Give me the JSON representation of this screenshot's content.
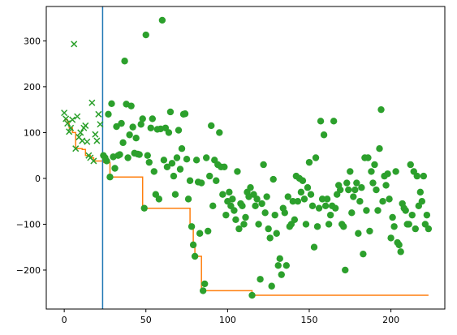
{
  "chart_data": {
    "type": "scatter",
    "title": "",
    "xlabel": "",
    "ylabel": "",
    "xlim": [
      -11,
      233
    ],
    "ylim": [
      -285,
      375
    ],
    "xticks": [
      0,
      50,
      100,
      150,
      200
    ],
    "yticks": [
      -200,
      -100,
      0,
      100,
      200,
      300
    ],
    "grid": false,
    "colors": {
      "points": "#2ca02c",
      "step": "#ff7f0e",
      "vline": "#1f77b4",
      "axes": "#000000"
    },
    "vline": {
      "x": 23.5
    },
    "series": [
      {
        "marker": "x",
        "points": [
          [
            0,
            143
          ],
          [
            1,
            130
          ],
          [
            2,
            120
          ],
          [
            3,
            102
          ],
          [
            4,
            110
          ],
          [
            5,
            128
          ],
          [
            6,
            293
          ],
          [
            7,
            65
          ],
          [
            8,
            135
          ],
          [
            9,
            90
          ],
          [
            10,
            100
          ],
          [
            11,
            82
          ],
          [
            12,
            110
          ],
          [
            13,
            115
          ],
          [
            14,
            80
          ],
          [
            15,
            50
          ],
          [
            16,
            45
          ],
          [
            17,
            165
          ],
          [
            18,
            38
          ],
          [
            19,
            96
          ],
          [
            20,
            82
          ],
          [
            21,
            140
          ],
          [
            22,
            118
          ]
        ]
      },
      {
        "marker": "o",
        "points": [
          [
            24,
            50
          ],
          [
            25,
            45
          ],
          [
            26,
            38
          ],
          [
            27,
            140
          ],
          [
            28,
            3
          ],
          [
            29,
            163
          ],
          [
            30,
            47
          ],
          [
            31,
            22
          ],
          [
            32,
            113
          ],
          [
            33,
            50
          ],
          [
            34,
            52
          ],
          [
            35,
            120
          ],
          [
            36,
            78
          ],
          [
            37,
            256
          ],
          [
            38,
            162
          ],
          [
            39,
            45
          ],
          [
            40,
            95
          ],
          [
            41,
            158
          ],
          [
            42,
            112
          ],
          [
            43,
            55
          ],
          [
            44,
            88
          ],
          [
            45,
            53
          ],
          [
            46,
            52
          ],
          [
            47,
            118
          ],
          [
            48,
            130
          ],
          [
            49,
            -65
          ],
          [
            50,
            313
          ],
          [
            51,
            50
          ],
          [
            52,
            35
          ],
          [
            53,
            110
          ],
          [
            54,
            130
          ],
          [
            55,
            15
          ],
          [
            56,
            -35
          ],
          [
            57,
            107
          ],
          [
            58,
            -45
          ],
          [
            59,
            108
          ],
          [
            60,
            345
          ],
          [
            61,
            40
          ],
          [
            62,
            110
          ],
          [
            63,
            25
          ],
          [
            64,
            100
          ],
          [
            65,
            145
          ],
          [
            66,
            33
          ],
          [
            67,
            5
          ],
          [
            68,
            -35
          ],
          [
            69,
            45
          ],
          [
            70,
            105
          ],
          [
            71,
            20
          ],
          [
            72,
            65
          ],
          [
            73,
            140
          ],
          [
            74,
            141
          ],
          [
            75,
            42
          ],
          [
            76,
            -45
          ],
          [
            77,
            -5
          ],
          [
            78,
            -105
          ],
          [
            79,
            -145
          ],
          [
            80,
            -170
          ],
          [
            81,
            40
          ],
          [
            82,
            -8
          ],
          [
            83,
            -120
          ],
          [
            84,
            -10
          ],
          [
            85,
            -245
          ],
          [
            86,
            -230
          ],
          [
            87,
            45
          ],
          [
            88,
            -115
          ],
          [
            89,
            5
          ],
          [
            90,
            115
          ],
          [
            91,
            -60
          ],
          [
            92,
            40
          ],
          [
            93,
            -5
          ],
          [
            94,
            30
          ],
          [
            95,
            100
          ],
          [
            96,
            25
          ],
          [
            97,
            -35
          ],
          [
            98,
            25
          ],
          [
            99,
            -80
          ],
          [
            100,
            -50
          ],
          [
            101,
            -30
          ],
          [
            102,
            -60
          ],
          [
            103,
            -45
          ],
          [
            104,
            -70
          ],
          [
            105,
            -90
          ],
          [
            106,
            15
          ],
          [
            107,
            -110
          ],
          [
            108,
            -55
          ],
          [
            109,
            -60
          ],
          [
            110,
            -100
          ],
          [
            111,
            -85
          ],
          [
            112,
            -30
          ],
          [
            113,
            -40
          ],
          [
            114,
            -20
          ],
          [
            115,
            -255
          ],
          [
            116,
            -35
          ],
          [
            117,
            -60
          ],
          [
            118,
            -45
          ],
          [
            119,
            -100
          ],
          [
            120,
            -220
          ],
          [
            121,
            -55
          ],
          [
            122,
            30
          ],
          [
            123,
            -75
          ],
          [
            124,
            -40
          ],
          [
            125,
            -110
          ],
          [
            126,
            -130
          ],
          [
            127,
            -235
          ],
          [
            128,
            -2
          ],
          [
            129,
            -80
          ],
          [
            130,
            -120
          ],
          [
            131,
            -190
          ],
          [
            132,
            -175
          ],
          [
            133,
            -210
          ],
          [
            134,
            -65
          ],
          [
            135,
            -75
          ],
          [
            136,
            -190
          ],
          [
            137,
            -40
          ],
          [
            138,
            -105
          ],
          [
            139,
            -100
          ],
          [
            140,
            -50
          ],
          [
            141,
            -90
          ],
          [
            142,
            5
          ],
          [
            143,
            -50
          ],
          [
            144,
            0
          ],
          [
            145,
            -30
          ],
          [
            146,
            -5
          ],
          [
            147,
            -45
          ],
          [
            148,
            -100
          ],
          [
            149,
            -20
          ],
          [
            150,
            35
          ],
          [
            151,
            -35
          ],
          [
            152,
            -60
          ],
          [
            153,
            -150
          ],
          [
            154,
            45
          ],
          [
            155,
            -105
          ],
          [
            156,
            -65
          ],
          [
            157,
            125
          ],
          [
            158,
            -45
          ],
          [
            159,
            95
          ],
          [
            160,
            -60
          ],
          [
            161,
            -45
          ],
          [
            162,
            -100
          ],
          [
            163,
            -80
          ],
          [
            164,
            -60
          ],
          [
            165,
            125
          ],
          [
            166,
            -65
          ],
          [
            167,
            -35
          ],
          [
            168,
            -15
          ],
          [
            169,
            -25
          ],
          [
            170,
            -100
          ],
          [
            171,
            -105
          ],
          [
            172,
            -200
          ],
          [
            173,
            -10
          ],
          [
            174,
            -25
          ],
          [
            175,
            15
          ],
          [
            176,
            -75
          ],
          [
            177,
            -40
          ],
          [
            178,
            -25
          ],
          [
            179,
            -10
          ],
          [
            180,
            -120
          ],
          [
            181,
            -50
          ],
          [
            182,
            -20
          ],
          [
            183,
            -165
          ],
          [
            184,
            45
          ],
          [
            185,
            -70
          ],
          [
            186,
            45
          ],
          [
            187,
            -115
          ],
          [
            188,
            15
          ],
          [
            189,
            -10
          ],
          [
            190,
            30
          ],
          [
            191,
            -25
          ],
          [
            192,
            -70
          ],
          [
            193,
            65
          ],
          [
            194,
            150
          ],
          [
            195,
            -50
          ],
          [
            196,
            5
          ],
          [
            197,
            -15
          ],
          [
            198,
            10
          ],
          [
            199,
            -45
          ],
          [
            200,
            -130
          ],
          [
            201,
            -85
          ],
          [
            202,
            -105
          ],
          [
            203,
            15
          ],
          [
            204,
            -140
          ],
          [
            205,
            -145
          ],
          [
            206,
            -160
          ],
          [
            207,
            -55
          ],
          [
            208,
            -65
          ],
          [
            209,
            -70
          ],
          [
            210,
            -100
          ],
          [
            211,
            -100
          ],
          [
            212,
            30
          ],
          [
            213,
            -80
          ],
          [
            214,
            15
          ],
          [
            215,
            -110
          ],
          [
            216,
            5
          ],
          [
            217,
            -60
          ],
          [
            218,
            -30
          ],
          [
            219,
            -50
          ],
          [
            220,
            5
          ],
          [
            221,
            -100
          ],
          [
            222,
            -80
          ],
          [
            223,
            -110
          ]
        ]
      }
    ],
    "step_line": [
      [
        0,
        128
      ],
      [
        2,
        128
      ],
      [
        2,
        120
      ],
      [
        3,
        120
      ],
      [
        3,
        110
      ],
      [
        5,
        110
      ],
      [
        5,
        100
      ],
      [
        7,
        100
      ],
      [
        7,
        65
      ],
      [
        11,
        65
      ],
      [
        11,
        63
      ],
      [
        13,
        63
      ],
      [
        13,
        50
      ],
      [
        16,
        50
      ],
      [
        16,
        45
      ],
      [
        18,
        45
      ],
      [
        18,
        38
      ],
      [
        24,
        38
      ],
      [
        24,
        35
      ],
      [
        28,
        35
      ],
      [
        28,
        3
      ],
      [
        48,
        3
      ],
      [
        48,
        -65
      ],
      [
        77,
        -65
      ],
      [
        77,
        -105
      ],
      [
        79,
        -105
      ],
      [
        79,
        -145
      ],
      [
        80,
        -145
      ],
      [
        80,
        -170
      ],
      [
        84,
        -170
      ],
      [
        84,
        -245
      ],
      [
        115,
        -245
      ],
      [
        115,
        -255
      ],
      [
        223,
        -255
      ]
    ]
  }
}
